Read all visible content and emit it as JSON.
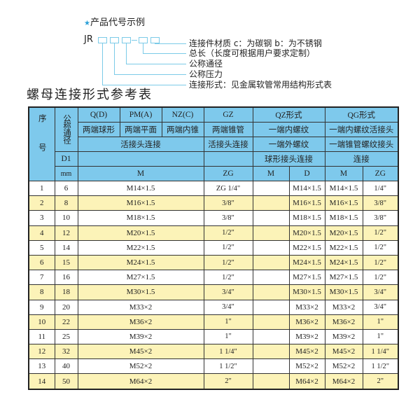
{
  "legend": {
    "title": "产品代号示例",
    "code_prefix": "JR",
    "descriptions": [
      "连接件材质    c：为碳钢   b：为不锈钢",
      "总长（长度可根据用户要求定制）",
      "公称通径",
      "公称压力",
      "连接形式：见金属软管常用结构形式表"
    ],
    "accent_color": "#2aa0d8"
  },
  "table_title": "螺母连接形式参考表",
  "header": {
    "seq": "序号",
    "nominal": "公称通径",
    "d1": "D1",
    "mm": "mm",
    "q": "Q(D)",
    "pm": "PM(A)",
    "nz": "NZ(C)",
    "gz": "GZ",
    "qz": "QZ形式",
    "qg": "QG形式",
    "q_desc": "两端球形",
    "pm_desc": "两端平面",
    "nz_desc": "两端内锥",
    "gz_desc": "两端锥管",
    "qz_desc1": "一端内螺纹",
    "qg_desc1": "一端内螺纹活接头",
    "union": "活接头连接",
    "gz_union": "活接头连接",
    "qz_desc2": "一端外螺纹",
    "qg_desc2": "一端锥管螺纹接头",
    "qz_desc3": "球形接头连接",
    "qg_desc3": "连接",
    "m": "M",
    "zg": "ZG",
    "qz_m": "M",
    "qz_d": "D",
    "qg_m": "M",
    "qg_zg": "ZG",
    "color": "#7ec9ec"
  },
  "rows": [
    {
      "no": "1",
      "dn": "6",
      "m": "M14×1.5",
      "gz": "ZG 1/4\"",
      "qz_m": "",
      "qz_d": "M14×1.5",
      "qg_m": "M14×1.5",
      "qg_zg": "1/4\""
    },
    {
      "no": "2",
      "dn": "8",
      "m": "M16×1.5",
      "gz": "3/8\"",
      "qz_m": "",
      "qz_d": "M16×1.5",
      "qg_m": "M16×1.5",
      "qg_zg": "3/8\""
    },
    {
      "no": "3",
      "dn": "10",
      "m": "M18×1.5",
      "gz": "3/8\"",
      "qz_m": "",
      "qz_d": "M18×1.5",
      "qg_m": "M18×1.5",
      "qg_zg": "3/8\""
    },
    {
      "no": "4",
      "dn": "12",
      "m": "M20×1.5",
      "gz": "1/2\"",
      "qz_m": "",
      "qz_d": "M20×1.5",
      "qg_m": "M20×1.5",
      "qg_zg": "1/2\""
    },
    {
      "no": "5",
      "dn": "14",
      "m": "M22×1.5",
      "gz": "1/2\"",
      "qz_m": "",
      "qz_d": "M22×1.5",
      "qg_m": "M22×1.5",
      "qg_zg": "1/2\""
    },
    {
      "no": "6",
      "dn": "15",
      "m": "M24×1.5",
      "gz": "1/2\"",
      "qz_m": "",
      "qz_d": "M24×1.5",
      "qg_m": "M24×1.5",
      "qg_zg": "1/2\""
    },
    {
      "no": "7",
      "dn": "16",
      "m": "M27×1.5",
      "gz": "1/2\"",
      "qz_m": "",
      "qz_d": "M27×1.5",
      "qg_m": "M27×1.5",
      "qg_zg": "1/2\""
    },
    {
      "no": "8",
      "dn": "18",
      "m": "M30×1.5",
      "gz": "3/4\"",
      "qz_m": "",
      "qz_d": "M30×1.5",
      "qg_m": "M30×1.5",
      "qg_zg": "3/4\""
    },
    {
      "no": "9",
      "dn": "20",
      "m": "M33×2",
      "gz": "3/4\"",
      "qz_m": "",
      "qz_d": "M33×2",
      "qg_m": "M33×2",
      "qg_zg": "3/4\""
    },
    {
      "no": "10",
      "dn": "22",
      "m": "M36×2",
      "gz": "1\"",
      "qz_m": "",
      "qz_d": "M36×2",
      "qg_m": "M36×2",
      "qg_zg": "1\""
    },
    {
      "no": "11",
      "dn": "25",
      "m": "M39×2",
      "gz": "1\"",
      "qz_m": "",
      "qz_d": "M39×2",
      "qg_m": "M39×2",
      "qg_zg": "1\""
    },
    {
      "no": "12",
      "dn": "32",
      "m": "M45×2",
      "gz": "1 1/4\"",
      "qz_m": "",
      "qz_d": "M45×2",
      "qg_m": "M45×2",
      "qg_zg": "1 1/4\""
    },
    {
      "no": "13",
      "dn": "40",
      "m": "M52×2",
      "gz": "1 1/2\"",
      "qz_m": "",
      "qz_d": "M52×2",
      "qg_m": "M52×2",
      "qg_zg": "1 1/2\""
    },
    {
      "no": "14",
      "dn": "50",
      "m": "M64×2",
      "gz": "2\"",
      "qz_m": "",
      "qz_d": "M64×2",
      "qg_m": "M64×2",
      "qg_zg": "2\""
    }
  ],
  "row_stripe_color": "#fcf3b8"
}
